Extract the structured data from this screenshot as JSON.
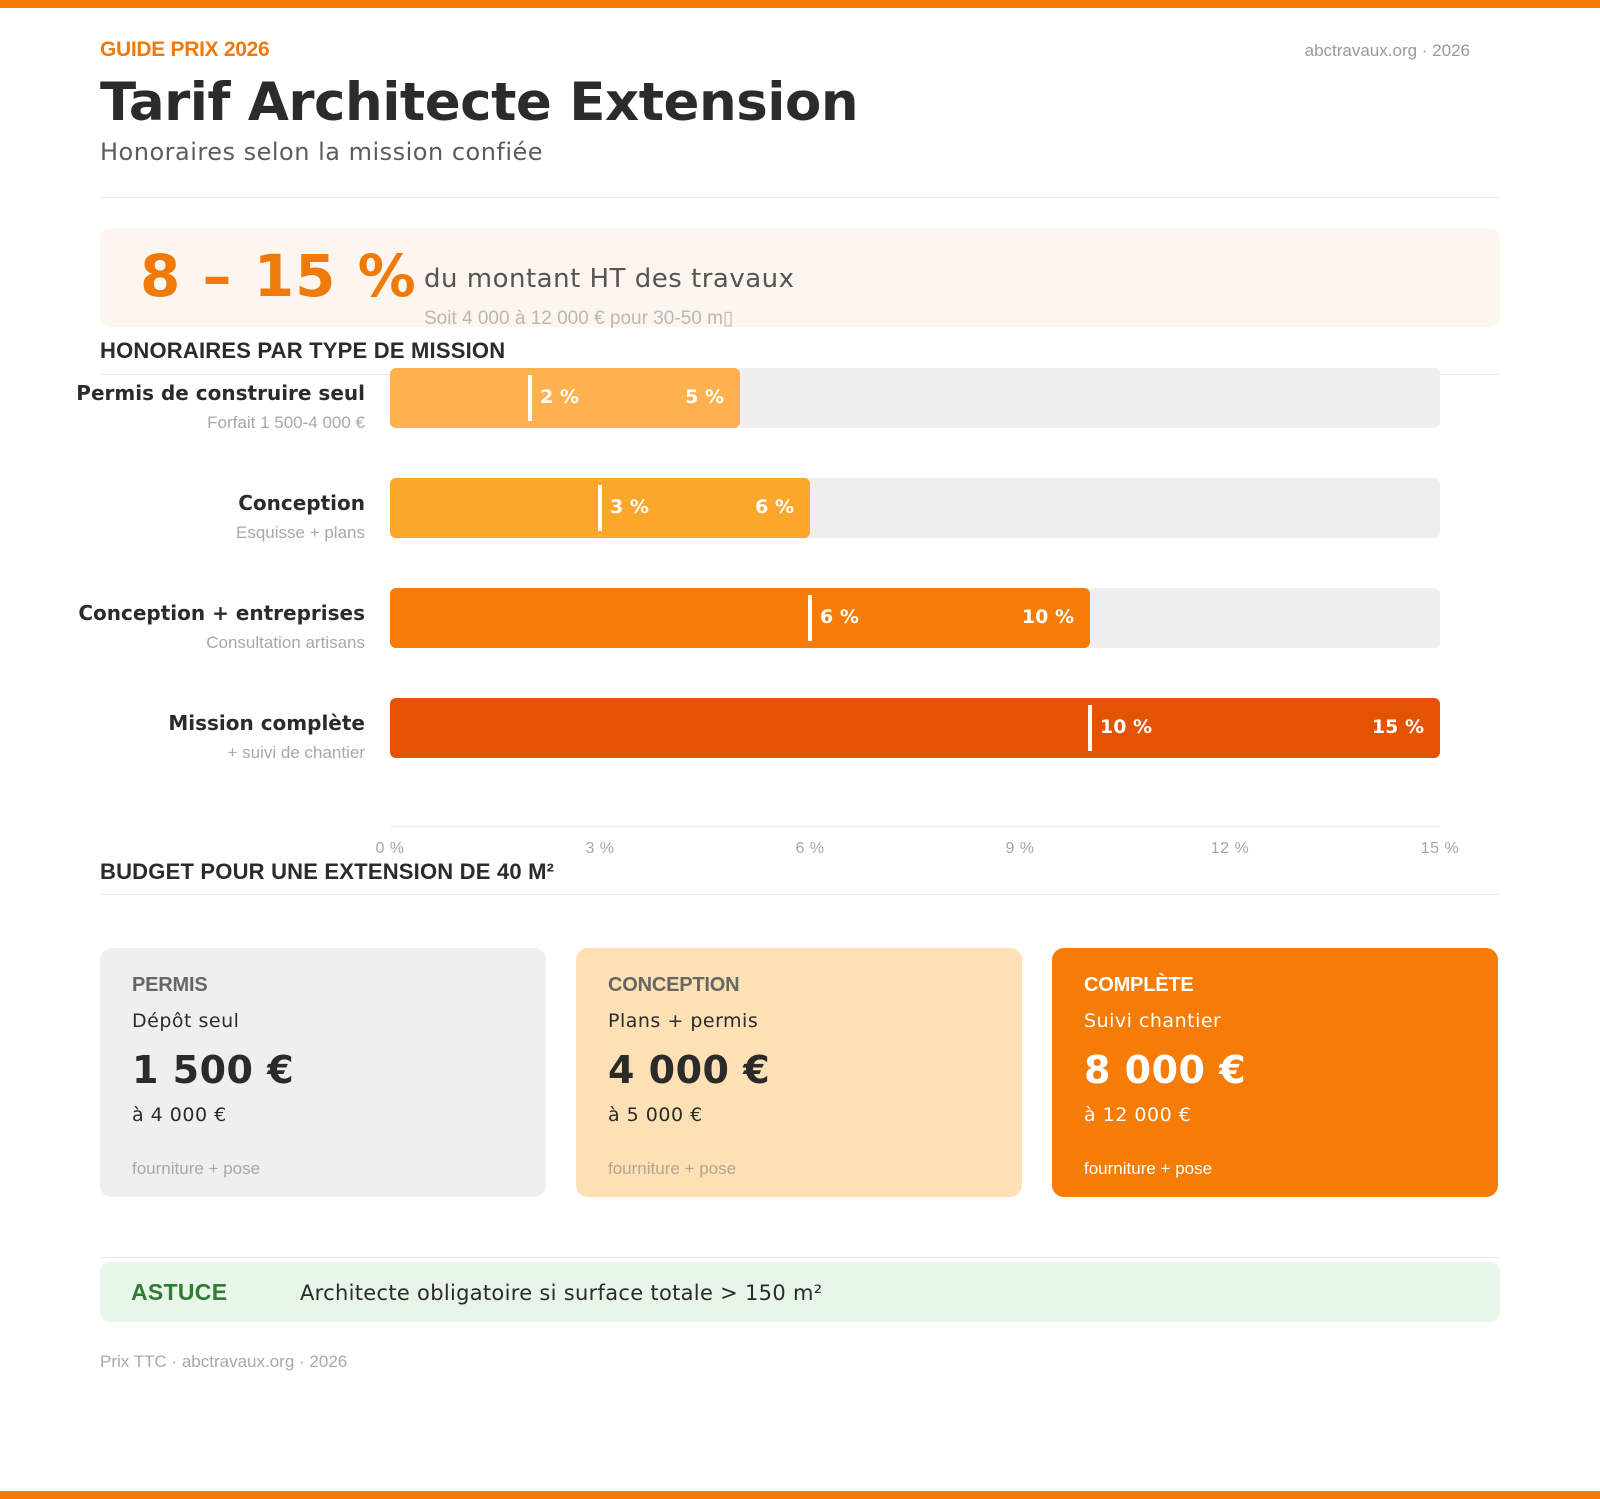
{
  "header": {
    "kicker": "GUIDE PRIX 2026",
    "source": "abctravaux.org · 2026",
    "title": "Tarif Architecte Extension",
    "subtitle": "Honoraires selon la mission confiée"
  },
  "hero": {
    "range": "8 – 15 %",
    "text": "du montant HT des travaux",
    "note": "Soit 4 000 à 12 000 € pour 30-50 m▯"
  },
  "section_missions": "HONORAIRES PAR TYPE DE MISSION",
  "chart_data": {
    "type": "bar",
    "orientation": "horizontal-range",
    "xlim": [
      0,
      15
    ],
    "x_ticks": [
      "0 %",
      "3 %",
      "6 %",
      "9 %",
      "12 %",
      "15 %"
    ],
    "x_tick_values": [
      0,
      3,
      6,
      9,
      12,
      15
    ],
    "grid": false,
    "rows": [
      {
        "label": "Permis de construire seul",
        "sub": "Forfait 1 500-4 000 €",
        "low": 2,
        "high": 5,
        "low_label": "2 %",
        "high_label": "5 %",
        "color": "#fdb14f"
      },
      {
        "label": "Conception",
        "sub": "Esquisse + plans",
        "low": 3,
        "high": 6,
        "low_label": "3 %",
        "high_label": "6 %",
        "color": "#fba72b"
      },
      {
        "label": "Conception + entreprises",
        "sub": "Consultation artisans",
        "low": 6,
        "high": 10,
        "low_label": "6 %",
        "high_label": "10 %",
        "color": "#f57c06"
      },
      {
        "label": "Mission complète",
        "sub": "+ suivi de chantier",
        "low": 10,
        "high": 15,
        "low_label": "10 %",
        "high_label": "15 %",
        "color": "#e35302"
      }
    ],
    "track_color": "#efefef"
  },
  "section_budget": "BUDGET POUR UNE EXTENSION DE 40 M²",
  "cards": [
    {
      "category": "PERMIS",
      "desc": "Dépôt seul",
      "price": "1 500 €",
      "to": "à 4 000 €",
      "foot": "fourniture + pose",
      "bg": "#efefef",
      "cat_color": "#666666",
      "text_color": "#2b2b2b",
      "foot_color": "#a8a8a8"
    },
    {
      "category": "CONCEPTION",
      "desc": "Plans + permis",
      "price": "4 000 €",
      "to": "à 5 000 €",
      "foot": "fourniture + pose",
      "bg": "#fde0b4",
      "cat_color": "#666666",
      "text_color": "#2b2b2b",
      "foot_color": "#b3a491"
    },
    {
      "category": "COMPLÈTE",
      "desc": "Suivi chantier",
      "price": "8 000 €",
      "to": "à 12 000 €",
      "foot": "fourniture + pose",
      "bg": "#f57c06",
      "cat_color": "#ffffff",
      "text_color": "#ffffff",
      "foot_color": "#ffffff"
    }
  ],
  "tip": {
    "label": "ASTUCE",
    "text": "Architecte obligatoire si surface totale > 150 m²"
  },
  "footer": "Prix TTC · abctravaux.org · 2026"
}
